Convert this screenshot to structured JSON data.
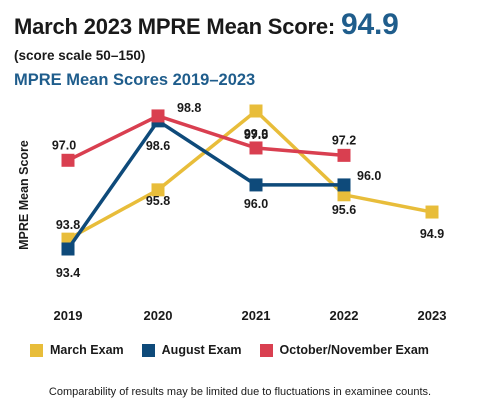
{
  "header": {
    "headline": "March 2023 MPRE Mean Score: ",
    "headline_score": "94.9",
    "subhead": "(score scale 50–150)"
  },
  "chart_data": {
    "type": "line",
    "title": "MPRE Mean Scores 2019–2023",
    "xlabel": "",
    "ylabel": "MPRE Mean Score",
    "categories": [
      "2019",
      "2020",
      "2021",
      "2022",
      "2023"
    ],
    "ylim": [
      93,
      99.4
    ],
    "grid": false,
    "legend_position": "bottom",
    "series": [
      {
        "name": "March Exam",
        "color": "#e8bd3a",
        "values": [
          93.8,
          95.8,
          99.0,
          95.6,
          94.9
        ]
      },
      {
        "name": "August Exam",
        "color": "#0e4a7a",
        "values": [
          93.4,
          98.6,
          96.0,
          96.0,
          null
        ]
      },
      {
        "name": "October/November Exam",
        "color": "#d93f50",
        "values": [
          97.0,
          98.8,
          97.5,
          97.2,
          null
        ]
      }
    ]
  },
  "footnote": "Comparability of results may be limited due to fluctuations in examinee counts."
}
